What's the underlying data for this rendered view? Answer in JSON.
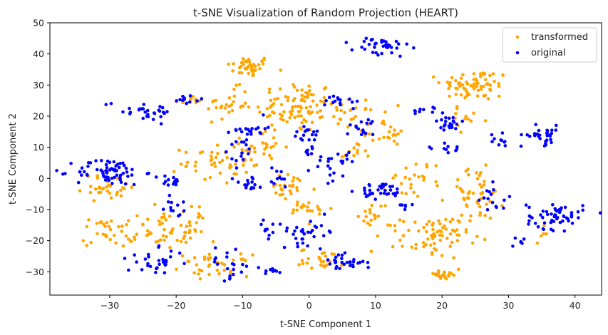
{
  "chart_data": {
    "type": "scatter",
    "title": "t-SNE Visualization of Random Projection (HEART)",
    "xlabel": "t-SNE Component 1",
    "ylabel": "t-SNE Component 2",
    "xlim": [
      -39,
      44
    ],
    "ylim": [
      -37.5,
      50
    ],
    "xticks": [
      -30,
      -20,
      -10,
      0,
      10,
      20,
      30,
      40
    ],
    "yticks": [
      -30,
      -20,
      -10,
      0,
      10,
      20,
      30,
      40,
      50
    ],
    "xtick_labels": [
      "−30",
      "−20",
      "−10",
      "0",
      "10",
      "20",
      "30",
      "40"
    ],
    "ytick_labels": [
      "−30",
      "−20",
      "−10",
      "0",
      "10",
      "20",
      "30",
      "40",
      "50"
    ],
    "grid": false,
    "legend_position": "top-right",
    "series": [
      {
        "name": "transformed",
        "color": "#FFA500",
        "clusters": [
          {
            "cx": -9,
            "cy": 36,
            "sx": 2.0,
            "sy": 2.0,
            "n": 40
          },
          {
            "cx": -2,
            "cy": 23,
            "sx": 3.5,
            "sy": 5.0,
            "n": 90
          },
          {
            "cx": 25,
            "cy": 30,
            "sx": 3.0,
            "sy": 3.0,
            "n": 70
          },
          {
            "cx": -18,
            "cy": 25,
            "sx": 1.5,
            "sy": 1.0,
            "n": 12
          },
          {
            "cx": -12,
            "cy": 24,
            "sx": 2.0,
            "sy": 3.0,
            "n": 25
          },
          {
            "cx": -14,
            "cy": 5,
            "sx": 3.0,
            "sy": 4.0,
            "n": 45
          },
          {
            "cx": -7,
            "cy": 10,
            "sx": 2.0,
            "sy": 3.0,
            "n": 25
          },
          {
            "cx": -30,
            "cy": -3,
            "sx": 2.5,
            "sy": 2.5,
            "n": 30
          },
          {
            "cx": -30,
            "cy": -17,
            "sx": 2.5,
            "sy": 3.0,
            "n": 35
          },
          {
            "cx": -23,
            "cy": -17,
            "sx": 2.0,
            "sy": 4.0,
            "n": 30
          },
          {
            "cx": -18,
            "cy": -16,
            "sx": 1.5,
            "sy": 4.5,
            "n": 30
          },
          {
            "cx": -14,
            "cy": -28,
            "sx": 3.0,
            "sy": 2.0,
            "n": 35
          },
          {
            "cx": -3,
            "cy": -3,
            "sx": 2.5,
            "sy": 2.5,
            "n": 25
          },
          {
            "cx": 0,
            "cy": -10,
            "sx": 2.0,
            "sy": 2.0,
            "n": 20
          },
          {
            "cx": 2,
            "cy": -26,
            "sx": 2.0,
            "sy": 2.0,
            "n": 25
          },
          {
            "cx": 7,
            "cy": 20,
            "sx": 2.5,
            "sy": 3.0,
            "n": 25
          },
          {
            "cx": 11,
            "cy": 14,
            "sx": 2.0,
            "sy": 2.0,
            "n": 20
          },
          {
            "cx": 16,
            "cy": 0,
            "sx": 2.5,
            "sy": 3.5,
            "n": 25
          },
          {
            "cx": 10,
            "cy": -12,
            "sx": 1.5,
            "sy": 3.5,
            "n": 20
          },
          {
            "cx": 19,
            "cy": -19,
            "sx": 3.0,
            "sy": 4.0,
            "n": 70
          },
          {
            "cx": 20,
            "cy": -31,
            "sx": 1.5,
            "sy": 1.0,
            "n": 20
          },
          {
            "cx": 25,
            "cy": -5,
            "sx": 2.5,
            "sy": 5.0,
            "n": 50
          },
          {
            "cx": 24,
            "cy": 19,
            "sx": 2.0,
            "sy": 2.0,
            "n": 12
          },
          {
            "cx": 35,
            "cy": -18,
            "sx": 0.5,
            "sy": 1.5,
            "n": 5
          },
          {
            "cx": 6,
            "cy": 8,
            "sx": 1.5,
            "sy": 1.5,
            "n": 10
          }
        ]
      },
      {
        "name": "original",
        "color": "#0000FF",
        "clusters": [
          {
            "cx": 11,
            "cy": 42,
            "sx": 2.5,
            "sy": 2.0,
            "n": 35
          },
          {
            "cx": -25,
            "cy": 22,
            "sx": 3.5,
            "sy": 2.0,
            "n": 30
          },
          {
            "cx": -19,
            "cy": 25,
            "sx": 1.5,
            "sy": 1.0,
            "n": 12
          },
          {
            "cx": 5,
            "cy": 25,
            "sx": 1.5,
            "sy": 1.5,
            "n": 15
          },
          {
            "cx": -9,
            "cy": 16,
            "sx": 1.5,
            "sy": 1.5,
            "n": 20
          },
          {
            "cx": -10,
            "cy": 9,
            "sx": 1.5,
            "sy": 3.0,
            "n": 15
          },
          {
            "cx": -30,
            "cy": 2,
            "sx": 3.0,
            "sy": 2.5,
            "n": 70
          },
          {
            "cx": -21,
            "cy": -1,
            "sx": 1.0,
            "sy": 1.5,
            "n": 15
          },
          {
            "cx": -20,
            "cy": -9,
            "sx": 1.0,
            "sy": 2.0,
            "n": 12
          },
          {
            "cx": -9,
            "cy": -2,
            "sx": 1.5,
            "sy": 2.0,
            "n": 15
          },
          {
            "cx": -5,
            "cy": 0,
            "sx": 1.5,
            "sy": 2.0,
            "n": 10
          },
          {
            "cx": 0,
            "cy": 14,
            "sx": 1.5,
            "sy": 1.5,
            "n": 15
          },
          {
            "cx": 0,
            "cy": 9,
            "sx": 1.0,
            "sy": 1.0,
            "n": 8
          },
          {
            "cx": 3,
            "cy": 3,
            "sx": 1.5,
            "sy": 3.0,
            "n": 12
          },
          {
            "cx": 11,
            "cy": -4,
            "sx": 2.0,
            "sy": 1.5,
            "n": 35
          },
          {
            "cx": 8,
            "cy": 16,
            "sx": 1.5,
            "sy": 2.0,
            "n": 15
          },
          {
            "cx": 21,
            "cy": 18,
            "sx": 1.5,
            "sy": 1.5,
            "n": 20
          },
          {
            "cx": 18,
            "cy": 22,
            "sx": 1.5,
            "sy": 1.0,
            "n": 10
          },
          {
            "cx": 21,
            "cy": 10,
            "sx": 1.5,
            "sy": 1.0,
            "n": 10
          },
          {
            "cx": 35,
            "cy": 14,
            "sx": 1.8,
            "sy": 1.8,
            "n": 30
          },
          {
            "cx": 29,
            "cy": 12,
            "sx": 1.0,
            "sy": 3.0,
            "n": 10
          },
          {
            "cx": 37,
            "cy": -12,
            "sx": 2.5,
            "sy": 2.5,
            "n": 55
          },
          {
            "cx": 32,
            "cy": -20,
            "sx": 0.5,
            "sy": 1.0,
            "n": 6
          },
          {
            "cx": 28,
            "cy": -7,
            "sx": 1.5,
            "sy": 3.0,
            "n": 15
          },
          {
            "cx": 0,
            "cy": -17,
            "sx": 2.5,
            "sy": 2.5,
            "n": 30
          },
          {
            "cx": -6,
            "cy": -17,
            "sx": 1.0,
            "sy": 2.0,
            "n": 10
          },
          {
            "cx": 5,
            "cy": -27,
            "sx": 2.0,
            "sy": 1.5,
            "n": 30
          },
          {
            "cx": -23,
            "cy": -27,
            "sx": 2.5,
            "sy": 2.5,
            "n": 30
          },
          {
            "cx": -12,
            "cy": -27,
            "sx": 2.0,
            "sy": 3.0,
            "n": 20
          },
          {
            "cx": -6,
            "cy": -30,
            "sx": 1.5,
            "sy": 1.0,
            "n": 10
          },
          {
            "cx": 14,
            "cy": -9,
            "sx": 1.0,
            "sy": 1.0,
            "n": 6
          },
          {
            "cx": 5,
            "cy": 6,
            "sx": 1.5,
            "sy": 1.5,
            "n": 10
          }
        ]
      }
    ]
  }
}
